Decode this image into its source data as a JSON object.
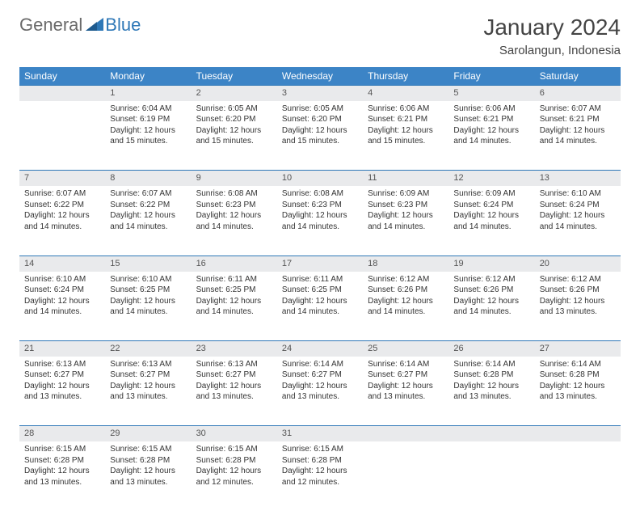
{
  "logo": {
    "text1": "General",
    "text2": "Blue"
  },
  "title": "January 2024",
  "location": "Sarolangun, Indonesia",
  "colors": {
    "header_bg": "#3c84c6",
    "row_divider": "#2f78b7",
    "daynum_bg": "#e9eaec",
    "logo_gray": "#6a6a6a",
    "logo_blue": "#2f78b7"
  },
  "weekdays": [
    "Sunday",
    "Monday",
    "Tuesday",
    "Wednesday",
    "Thursday",
    "Friday",
    "Saturday"
  ],
  "weeks": [
    [
      null,
      {
        "n": "1",
        "sr": "6:04 AM",
        "ss": "6:19 PM",
        "dl": "12 hours and 15 minutes."
      },
      {
        "n": "2",
        "sr": "6:05 AM",
        "ss": "6:20 PM",
        "dl": "12 hours and 15 minutes."
      },
      {
        "n": "3",
        "sr": "6:05 AM",
        "ss": "6:20 PM",
        "dl": "12 hours and 15 minutes."
      },
      {
        "n": "4",
        "sr": "6:06 AM",
        "ss": "6:21 PM",
        "dl": "12 hours and 15 minutes."
      },
      {
        "n": "5",
        "sr": "6:06 AM",
        "ss": "6:21 PM",
        "dl": "12 hours and 14 minutes."
      },
      {
        "n": "6",
        "sr": "6:07 AM",
        "ss": "6:21 PM",
        "dl": "12 hours and 14 minutes."
      }
    ],
    [
      {
        "n": "7",
        "sr": "6:07 AM",
        "ss": "6:22 PM",
        "dl": "12 hours and 14 minutes."
      },
      {
        "n": "8",
        "sr": "6:07 AM",
        "ss": "6:22 PM",
        "dl": "12 hours and 14 minutes."
      },
      {
        "n": "9",
        "sr": "6:08 AM",
        "ss": "6:23 PM",
        "dl": "12 hours and 14 minutes."
      },
      {
        "n": "10",
        "sr": "6:08 AM",
        "ss": "6:23 PM",
        "dl": "12 hours and 14 minutes."
      },
      {
        "n": "11",
        "sr": "6:09 AM",
        "ss": "6:23 PM",
        "dl": "12 hours and 14 minutes."
      },
      {
        "n": "12",
        "sr": "6:09 AM",
        "ss": "6:24 PM",
        "dl": "12 hours and 14 minutes."
      },
      {
        "n": "13",
        "sr": "6:10 AM",
        "ss": "6:24 PM",
        "dl": "12 hours and 14 minutes."
      }
    ],
    [
      {
        "n": "14",
        "sr": "6:10 AM",
        "ss": "6:24 PM",
        "dl": "12 hours and 14 minutes."
      },
      {
        "n": "15",
        "sr": "6:10 AM",
        "ss": "6:25 PM",
        "dl": "12 hours and 14 minutes."
      },
      {
        "n": "16",
        "sr": "6:11 AM",
        "ss": "6:25 PM",
        "dl": "12 hours and 14 minutes."
      },
      {
        "n": "17",
        "sr": "6:11 AM",
        "ss": "6:25 PM",
        "dl": "12 hours and 14 minutes."
      },
      {
        "n": "18",
        "sr": "6:12 AM",
        "ss": "6:26 PM",
        "dl": "12 hours and 14 minutes."
      },
      {
        "n": "19",
        "sr": "6:12 AM",
        "ss": "6:26 PM",
        "dl": "12 hours and 14 minutes."
      },
      {
        "n": "20",
        "sr": "6:12 AM",
        "ss": "6:26 PM",
        "dl": "12 hours and 13 minutes."
      }
    ],
    [
      {
        "n": "21",
        "sr": "6:13 AM",
        "ss": "6:27 PM",
        "dl": "12 hours and 13 minutes."
      },
      {
        "n": "22",
        "sr": "6:13 AM",
        "ss": "6:27 PM",
        "dl": "12 hours and 13 minutes."
      },
      {
        "n": "23",
        "sr": "6:13 AM",
        "ss": "6:27 PM",
        "dl": "12 hours and 13 minutes."
      },
      {
        "n": "24",
        "sr": "6:14 AM",
        "ss": "6:27 PM",
        "dl": "12 hours and 13 minutes."
      },
      {
        "n": "25",
        "sr": "6:14 AM",
        "ss": "6:27 PM",
        "dl": "12 hours and 13 minutes."
      },
      {
        "n": "26",
        "sr": "6:14 AM",
        "ss": "6:28 PM",
        "dl": "12 hours and 13 minutes."
      },
      {
        "n": "27",
        "sr": "6:14 AM",
        "ss": "6:28 PM",
        "dl": "12 hours and 13 minutes."
      }
    ],
    [
      {
        "n": "28",
        "sr": "6:15 AM",
        "ss": "6:28 PM",
        "dl": "12 hours and 13 minutes."
      },
      {
        "n": "29",
        "sr": "6:15 AM",
        "ss": "6:28 PM",
        "dl": "12 hours and 13 minutes."
      },
      {
        "n": "30",
        "sr": "6:15 AM",
        "ss": "6:28 PM",
        "dl": "12 hours and 12 minutes."
      },
      {
        "n": "31",
        "sr": "6:15 AM",
        "ss": "6:28 PM",
        "dl": "12 hours and 12 minutes."
      },
      null,
      null,
      null
    ]
  ],
  "labels": {
    "sunrise": "Sunrise:",
    "sunset": "Sunset:",
    "daylight": "Daylight:"
  }
}
